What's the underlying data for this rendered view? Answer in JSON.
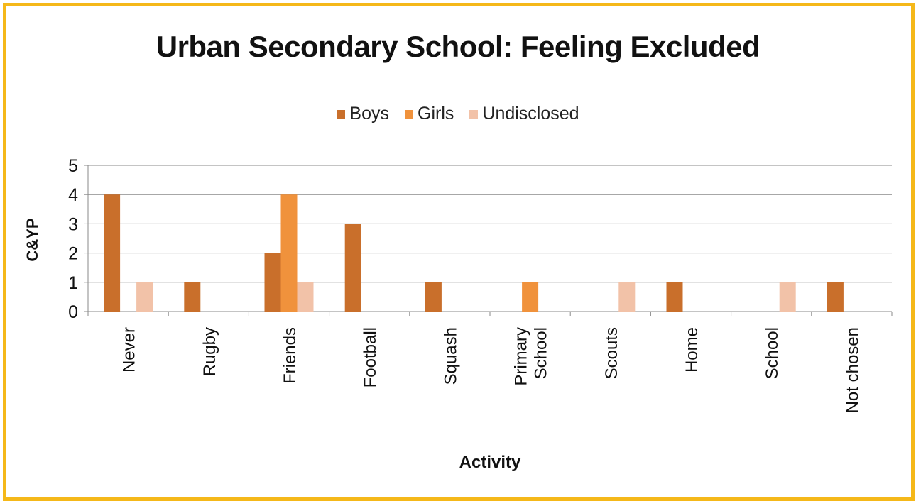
{
  "chart_data": {
    "type": "bar",
    "title": "Urban Secondary School: Feeling Excluded",
    "xlabel": "Activity",
    "ylabel": "C&YP",
    "ylim": [
      0,
      5
    ],
    "yticks": [
      "0",
      "1",
      "2",
      "3",
      "4",
      "5"
    ],
    "grid": true,
    "legend_position": "top",
    "categories": [
      "Never",
      "Rugby",
      "Friends",
      "Football",
      "Squash",
      "Primary School",
      "Scouts",
      "Home",
      "School",
      "Not chosen"
    ],
    "category_lines": [
      [
        "Never"
      ],
      [
        "Rugby"
      ],
      [
        "Friends"
      ],
      [
        "Football"
      ],
      [
        "Squash"
      ],
      [
        "Primary",
        "School"
      ],
      [
        "Scouts"
      ],
      [
        "Home"
      ],
      [
        "School"
      ],
      [
        "Not chosen"
      ]
    ],
    "series": [
      {
        "name": "Boys",
        "color": "#c96f2b",
        "values": [
          4,
          1,
          2,
          3,
          1,
          0,
          0,
          1,
          0,
          1
        ]
      },
      {
        "name": "Girls",
        "color": "#f0923c",
        "values": [
          0,
          0,
          4,
          0,
          0,
          1,
          0,
          0,
          0,
          0
        ]
      },
      {
        "name": "Undisclosed",
        "color": "#f2c2a8",
        "values": [
          1,
          0,
          1,
          0,
          0,
          0,
          1,
          0,
          1,
          0
        ]
      }
    ]
  }
}
